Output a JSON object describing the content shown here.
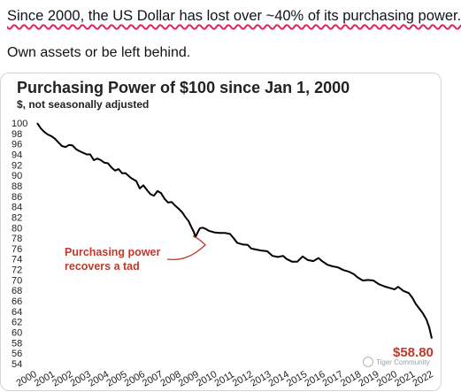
{
  "post": {
    "headline": "Since 2000, the US Dollar has lost over ~40% of its purchasing power.",
    "subline": "Own assets or be left behind."
  },
  "watermark": "Tiger Community",
  "chart_data": {
    "type": "line",
    "title": "Purchasing Power of $100 since Jan 1, 2000",
    "subtitle": "$, not seasonally adjusted",
    "xlabel": "",
    "ylabel": "",
    "ylim": [
      54,
      100
    ],
    "xlim": [
      2000,
      2022.3
    ],
    "yticks": [
      100,
      98,
      96,
      94,
      92,
      90,
      88,
      86,
      84,
      82,
      80,
      78,
      76,
      74,
      72,
      70,
      68,
      66,
      64,
      62,
      60,
      58,
      56,
      54
    ],
    "xticks": [
      "2000",
      "2001",
      "2002",
      "2003",
      "2004",
      "2005",
      "2006",
      "2007",
      "2008",
      "2009",
      "2010",
      "2011",
      "2012",
      "2013",
      "2014",
      "2015",
      "2016",
      "2017",
      "2018",
      "2019",
      "2020",
      "2021",
      "2022"
    ],
    "grid": false,
    "legend": "none",
    "line_color": "#000000",
    "annotation": {
      "text_line1": "Purchasing power",
      "text_line2": "recovers a tad",
      "color": "#c0392b",
      "points_to": {
        "x": 2008.8,
        "y": 78.4
      }
    },
    "end_label": "$58.80",
    "series": [
      {
        "values": [
          [
            2000.0,
            100.0
          ],
          [
            2000.2,
            99.0
          ],
          [
            2000.4,
            98.3
          ],
          [
            2000.6,
            97.8
          ],
          [
            2000.8,
            97.5
          ],
          [
            2001.0,
            97.0
          ],
          [
            2001.2,
            96.3
          ],
          [
            2001.4,
            95.6
          ],
          [
            2001.6,
            95.4
          ],
          [
            2001.8,
            95.8
          ],
          [
            2002.0,
            95.7
          ],
          [
            2002.2,
            95.0
          ],
          [
            2002.4,
            94.6
          ],
          [
            2002.6,
            94.3
          ],
          [
            2002.8,
            94.0
          ],
          [
            2003.0,
            94.0
          ],
          [
            2003.2,
            92.9
          ],
          [
            2003.4,
            93.2
          ],
          [
            2003.6,
            92.9
          ],
          [
            2003.8,
            92.4
          ],
          [
            2004.0,
            92.3
          ],
          [
            2004.2,
            91.5
          ],
          [
            2004.4,
            90.9
          ],
          [
            2004.6,
            91.2
          ],
          [
            2004.8,
            90.4
          ],
          [
            2005.0,
            90.4
          ],
          [
            2005.3,
            89.5
          ],
          [
            2005.6,
            88.9
          ],
          [
            2005.8,
            87.5
          ],
          [
            2006.0,
            88.1
          ],
          [
            2006.2,
            87.2
          ],
          [
            2006.4,
            86.4
          ],
          [
            2006.6,
            86.1
          ],
          [
            2006.8,
            87.0
          ],
          [
            2007.0,
            86.6
          ],
          [
            2007.2,
            85.5
          ],
          [
            2007.4,
            84.8
          ],
          [
            2007.6,
            84.9
          ],
          [
            2007.8,
            84.2
          ],
          [
            2008.0,
            83.6
          ],
          [
            2008.2,
            82.9
          ],
          [
            2008.4,
            81.9
          ],
          [
            2008.55,
            81.3
          ],
          [
            2008.7,
            80.2
          ],
          [
            2008.85,
            79.2
          ],
          [
            2008.95,
            78.2
          ],
          [
            2009.0,
            78.6
          ],
          [
            2009.1,
            79.3
          ],
          [
            2009.2,
            79.9
          ],
          [
            2009.35,
            80.0
          ],
          [
            2009.5,
            79.8
          ],
          [
            2009.7,
            79.4
          ],
          [
            2010.0,
            79.1
          ],
          [
            2010.3,
            79.0
          ],
          [
            2010.6,
            79.0
          ],
          [
            2010.9,
            78.8
          ],
          [
            2011.1,
            78.0
          ],
          [
            2011.3,
            77.1
          ],
          [
            2011.6,
            76.8
          ],
          [
            2011.9,
            76.7
          ],
          [
            2012.1,
            76.0
          ],
          [
            2012.4,
            75.8
          ],
          [
            2012.7,
            75.6
          ],
          [
            2013.0,
            75.5
          ],
          [
            2013.3,
            74.6
          ],
          [
            2013.6,
            74.4
          ],
          [
            2013.9,
            74.6
          ],
          [
            2014.1,
            74.0
          ],
          [
            2014.4,
            73.5
          ],
          [
            2014.7,
            73.5
          ],
          [
            2015.0,
            74.5
          ],
          [
            2015.3,
            73.8
          ],
          [
            2015.6,
            73.6
          ],
          [
            2015.9,
            74.2
          ],
          [
            2016.1,
            73.6
          ],
          [
            2016.4,
            72.9
          ],
          [
            2016.7,
            72.6
          ],
          [
            2017.0,
            72.4
          ],
          [
            2017.3,
            71.9
          ],
          [
            2017.6,
            71.6
          ],
          [
            2017.9,
            71.1
          ],
          [
            2018.1,
            70.5
          ],
          [
            2018.4,
            69.9
          ],
          [
            2018.7,
            70.0
          ],
          [
            2019.0,
            69.9
          ],
          [
            2019.3,
            69.2
          ],
          [
            2019.6,
            68.8
          ],
          [
            2019.9,
            68.5
          ],
          [
            2020.2,
            68.2
          ],
          [
            2020.4,
            68.7
          ],
          [
            2020.7,
            67.9
          ],
          [
            2021.0,
            67.5
          ],
          [
            2021.2,
            66.6
          ],
          [
            2021.4,
            65.4
          ],
          [
            2021.6,
            64.5
          ],
          [
            2021.8,
            63.6
          ],
          [
            2022.0,
            62.4
          ],
          [
            2022.15,
            61.0
          ],
          [
            2022.3,
            58.8
          ]
        ]
      }
    ]
  }
}
